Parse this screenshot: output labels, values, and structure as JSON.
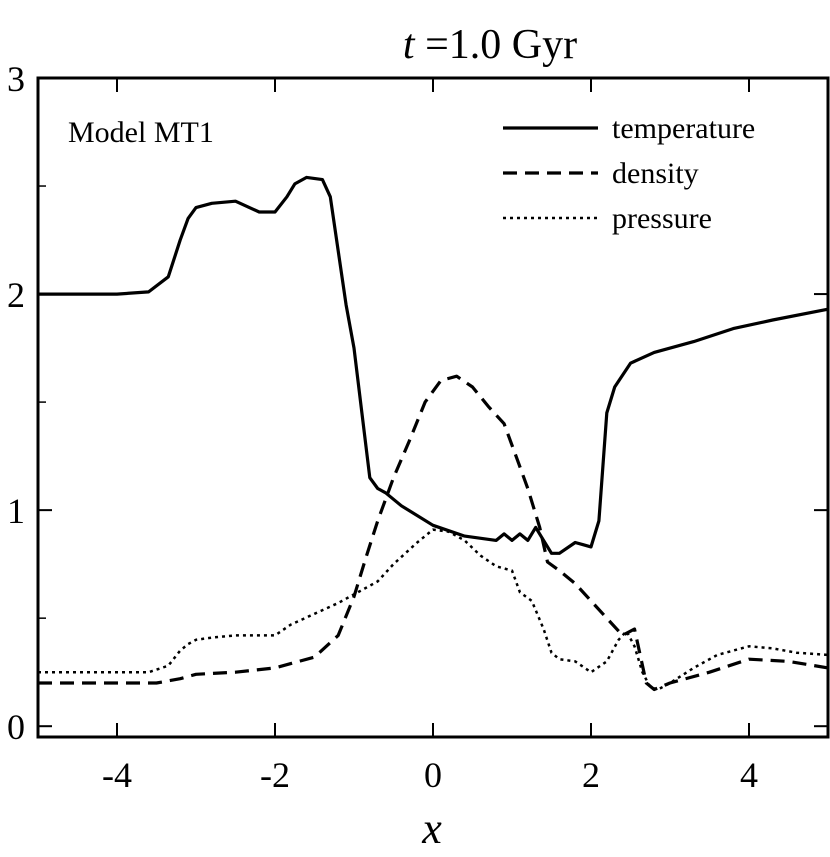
{
  "chart_data": {
    "type": "line",
    "title_var": "t",
    "title_rest": " =1.0 Gyr",
    "xlabel": "x",
    "ylabel": "",
    "panel_label": "Model MT1",
    "xlim": [
      -5,
      5
    ],
    "ylim": [
      -0.05,
      3.0
    ],
    "xticks": [
      -4,
      -2,
      0,
      2,
      4
    ],
    "xtick_labels": [
      "-4",
      "-2",
      "0",
      "2",
      "4"
    ],
    "yticks": [
      0,
      1,
      2,
      3
    ],
    "ytick_labels": [
      "0",
      "1",
      "2",
      "3"
    ],
    "legend_position": "top-right",
    "series": [
      {
        "name": "temperature",
        "style": "solid",
        "x": [
          -5.0,
          -4.0,
          -3.6,
          -3.35,
          -3.2,
          -3.1,
          -3.0,
          -2.8,
          -2.5,
          -2.2,
          -2.0,
          -1.85,
          -1.75,
          -1.6,
          -1.4,
          -1.3,
          -1.2,
          -1.1,
          -1.0,
          -0.9,
          -0.8,
          -0.7,
          -0.6,
          -0.4,
          0.0,
          0.4,
          0.8,
          0.9,
          1.0,
          1.1,
          1.2,
          1.3,
          1.4,
          1.5,
          1.6,
          1.8,
          1.9,
          2.0,
          2.1,
          2.2,
          2.3,
          2.5,
          2.8,
          3.3,
          3.8,
          4.3,
          5.0
        ],
        "y": [
          2.0,
          2.0,
          2.01,
          2.08,
          2.25,
          2.35,
          2.4,
          2.42,
          2.43,
          2.38,
          2.38,
          2.45,
          2.51,
          2.54,
          2.53,
          2.45,
          2.2,
          1.95,
          1.75,
          1.45,
          1.15,
          1.1,
          1.08,
          1.02,
          0.93,
          0.88,
          0.86,
          0.89,
          0.86,
          0.89,
          0.86,
          0.92,
          0.86,
          0.8,
          0.8,
          0.85,
          0.84,
          0.83,
          0.95,
          1.45,
          1.57,
          1.68,
          1.73,
          1.78,
          1.84,
          1.88,
          1.93
        ]
      },
      {
        "name": "density",
        "style": "dashed",
        "x": [
          -5.0,
          -3.5,
          -3.2,
          -3.0,
          -2.5,
          -2.0,
          -1.5,
          -1.2,
          -1.0,
          -0.85,
          -0.7,
          -0.5,
          -0.3,
          -0.1,
          0.1,
          0.3,
          0.5,
          0.7,
          0.9,
          1.05,
          1.2,
          1.35,
          1.45,
          1.6,
          1.8,
          2.0,
          2.2,
          2.4,
          2.55,
          2.7,
          2.8,
          3.0,
          3.5,
          4.0,
          4.5,
          5.0
        ],
        "y": [
          0.2,
          0.2,
          0.22,
          0.24,
          0.25,
          0.27,
          0.32,
          0.42,
          0.6,
          0.78,
          0.95,
          1.15,
          1.32,
          1.5,
          1.6,
          1.62,
          1.57,
          1.48,
          1.4,
          1.25,
          1.1,
          0.92,
          0.76,
          0.72,
          0.66,
          0.58,
          0.5,
          0.42,
          0.45,
          0.2,
          0.17,
          0.2,
          0.25,
          0.31,
          0.3,
          0.27
        ]
      },
      {
        "name": "pressure",
        "style": "dotted",
        "x": [
          -5.0,
          -3.6,
          -3.35,
          -3.2,
          -3.1,
          -3.0,
          -2.8,
          -2.5,
          -2.0,
          -1.8,
          -1.5,
          -1.2,
          -1.0,
          -0.7,
          -0.5,
          -0.2,
          0.0,
          0.2,
          0.4,
          0.6,
          0.8,
          1.0,
          1.1,
          1.25,
          1.4,
          1.5,
          1.6,
          1.8,
          2.0,
          2.2,
          2.35,
          2.45,
          2.55,
          2.65,
          2.75,
          2.85,
          3.0,
          3.3,
          3.6,
          4.0,
          4.3,
          4.6,
          5.0
        ],
        "y": [
          0.25,
          0.25,
          0.28,
          0.35,
          0.38,
          0.4,
          0.41,
          0.42,
          0.42,
          0.47,
          0.52,
          0.57,
          0.61,
          0.67,
          0.75,
          0.85,
          0.91,
          0.9,
          0.86,
          0.79,
          0.74,
          0.72,
          0.62,
          0.58,
          0.45,
          0.34,
          0.31,
          0.3,
          0.25,
          0.3,
          0.4,
          0.44,
          0.37,
          0.25,
          0.18,
          0.17,
          0.2,
          0.27,
          0.33,
          0.37,
          0.36,
          0.34,
          0.33
        ]
      }
    ]
  }
}
